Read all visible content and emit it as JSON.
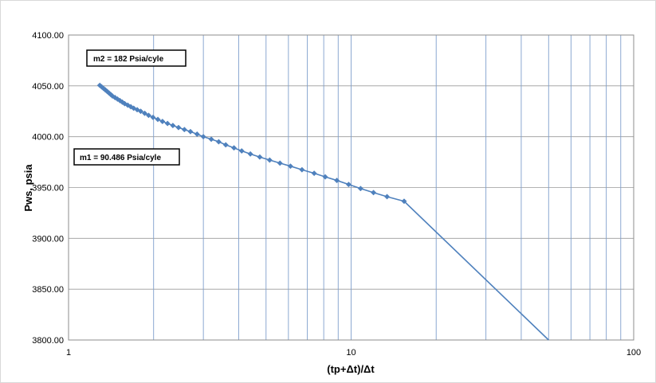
{
  "chart_data": {
    "type": "scatter",
    "xscale": "log",
    "xlim": [
      1,
      100
    ],
    "ylim": [
      3800,
      4100
    ],
    "x_ticks": [
      "1",
      "10",
      "100"
    ],
    "y_ticks": [
      "3800.00",
      "3850.00",
      "3900.00",
      "3950.00",
      "4000.00",
      "4050.00",
      "4100.00"
    ],
    "xlabel": "(tp+Δt)/Δt",
    "ylabel": "Pws, psia",
    "grid": true,
    "legend": "none",
    "colors": {
      "series": "#4f81bd",
      "grid": "#7f9fcc",
      "hgrid": "#9a9a9a"
    },
    "series": [
      {
        "x": [
          1.29,
          1.31,
          1.33,
          1.35,
          1.37,
          1.39,
          1.41,
          1.43,
          1.46,
          1.49,
          1.52,
          1.55,
          1.58,
          1.62,
          1.66,
          1.7,
          1.75,
          1.8,
          1.86,
          1.92,
          1.99,
          2.07,
          2.15,
          2.24,
          2.34,
          2.45,
          2.57,
          2.7,
          2.85,
          3.0,
          3.2,
          3.4,
          3.6,
          3.85,
          4.1,
          4.4,
          4.75,
          5.15,
          5.6,
          6.1,
          6.7,
          7.4,
          8.1,
          8.9,
          9.8,
          10.8,
          12.0,
          13.4,
          15.4
        ],
        "y": [
          4050.5,
          4049,
          4047.5,
          4046,
          4044.5,
          4043,
          4041.5,
          4040,
          4038.5,
          4037,
          4035.5,
          4034,
          4032.5,
          4031,
          4029.5,
          4028,
          4026.5,
          4025,
          4023,
          4021,
          4019,
          4017,
          4015,
          4013,
          4011,
          4009,
          4007,
          4005,
          4002.5,
          4000,
          3997.5,
          3995,
          3992,
          3989,
          3986,
          3983,
          3980,
          3977,
          3974,
          3971,
          3967.5,
          3964,
          3960.5,
          3957,
          3953,
          3949,
          3945,
          3941,
          3936.5
        ]
      },
      {
        "x": [
          15.4,
          50
        ],
        "y": [
          3936.5,
          3800
        ]
      }
    ],
    "annotations": [
      {
        "text": "m2 = 182 Psia/cyle"
      },
      {
        "text": "m1 = 90.486 Psia/cyle"
      }
    ]
  }
}
